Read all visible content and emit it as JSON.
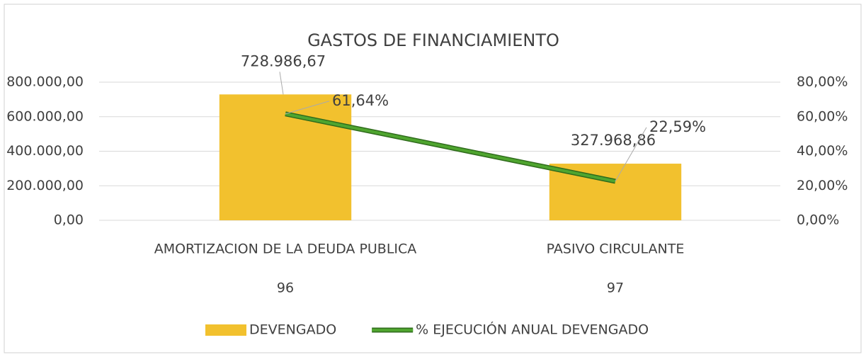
{
  "chart_data": {
    "type": "bar",
    "title": "GASTOS DE FINANCIAMIENTO",
    "categories": [
      "AMORTIZACION DE LA DEUDA PUBLICA",
      "PASIVO CIRCULANTE"
    ],
    "category_groups": [
      "96",
      "97"
    ],
    "series": [
      {
        "name": "DEVENGADO",
        "type": "bar",
        "color": "#f2c12e",
        "values": [
          728986.67,
          327968.86
        ],
        "value_labels": [
          "728.986,67",
          "327.968,86"
        ]
      },
      {
        "name": "% EJECUCIÓN ANUAL DEVENGADO",
        "type": "line",
        "axis": "y2",
        "color": "#4fa52f",
        "values": [
          61.64,
          22.59
        ],
        "value_labels": [
          "61,64%",
          "22,59%"
        ]
      }
    ],
    "ylim": [
      0,
      800000
    ],
    "yticks": [
      {
        "value": 0,
        "label": "0,00"
      },
      {
        "value": 200000,
        "label": "200.000,00"
      },
      {
        "value": 400000,
        "label": "400.000,00"
      },
      {
        "value": 600000,
        "label": "600.000,00"
      },
      {
        "value": 800000,
        "label": "800.000,00"
      }
    ],
    "y2lim": [
      0,
      80
    ],
    "y2ticks": [
      {
        "value": 0,
        "label": "0,00%"
      },
      {
        "value": 20,
        "label": "20,00%"
      },
      {
        "value": 40,
        "label": "40,00%"
      },
      {
        "value": 60,
        "label": "60,00%"
      },
      {
        "value": 80,
        "label": "80,00%"
      }
    ],
    "grid": true,
    "legend": "bottom"
  }
}
